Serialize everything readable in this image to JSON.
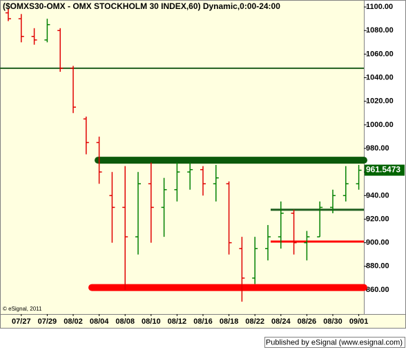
{
  "chart_data": {
    "type": "ohlc",
    "title": "($OMXS30-OMX - OMX STOCKHOLM 30 INDEX,60) Dynamic,0:00-24:00",
    "x": [
      null,
      "07/27",
      null,
      "07/29",
      null,
      "08/02",
      null,
      "08/04",
      null,
      "08/08",
      null,
      "08/10",
      null,
      "08/12",
      null,
      "08/16",
      null,
      "08/18",
      null,
      "08/22",
      null,
      "08/24",
      null,
      "08/26",
      null,
      "08/30",
      null,
      "09/01"
    ],
    "open": [
      1095,
      1090,
      1075,
      1072,
      1080,
      1048,
      1005,
      985,
      940,
      930,
      905,
      950,
      930,
      945,
      960,
      962,
      950,
      950,
      895,
      870,
      895,
      905,
      925,
      900,
      905,
      930,
      940,
      950
    ],
    "high": [
      1099,
      1094,
      1082,
      1090,
      1082,
      1050,
      1007,
      990,
      960,
      965,
      960,
      968,
      955,
      968,
      968,
      965,
      966,
      952,
      905,
      905,
      915,
      935,
      928,
      910,
      935,
      945,
      965,
      966
    ],
    "low": [
      1088,
      1070,
      1068,
      1070,
      1045,
      1010,
      975,
      950,
      900,
      860,
      890,
      900,
      905,
      935,
      945,
      940,
      935,
      890,
      850,
      865,
      885,
      895,
      890,
      885,
      905,
      925,
      935,
      945
    ],
    "close": [
      1090,
      1075,
      1072,
      1085,
      1048,
      1015,
      985,
      960,
      930,
      905,
      950,
      930,
      945,
      960,
      962,
      950,
      955,
      900,
      870,
      895,
      905,
      925,
      900,
      905,
      930,
      940,
      950,
      961.5
    ],
    "up_color": "#008000",
    "down_color": "#e00000",
    "ylim": [
      839.5,
      1105.9
    ],
    "yticks": [
      {
        "value": 860,
        "label": "860.00"
      },
      {
        "value": 880,
        "label": "880.00"
      },
      {
        "value": 900,
        "label": "900.00"
      },
      {
        "value": 920,
        "label": "920.00"
      },
      {
        "value": 940,
        "label": "940.00"
      },
      {
        "value": 960,
        "label": "960.00"
      },
      {
        "value": 980,
        "label": "980.00"
      },
      {
        "value": 1000,
        "label": "1000.00"
      },
      {
        "value": 1020,
        "label": "1020.00"
      },
      {
        "value": 1040,
        "label": "1040.00"
      },
      {
        "value": 1060,
        "label": "1060.00"
      },
      {
        "value": 1080,
        "label": "1080.00"
      },
      {
        "value": 1100,
        "label": "1100.00"
      }
    ],
    "levels": [
      {
        "value": 1048,
        "color": "#1e5e1e"
      },
      {
        "value": 970,
        "color": "#0b5a0b"
      },
      {
        "value": 862,
        "color": "#ff0000"
      },
      {
        "value": 928,
        "color": "#1e5e1e"
      },
      {
        "value": 901,
        "color": "#ff0000"
      }
    ],
    "last_price": {
      "value": 961.5473,
      "color": "#006400"
    },
    "copyright": "© eSignal, 2011",
    "footer": "Published by eSignal (www.esignal.com)"
  }
}
